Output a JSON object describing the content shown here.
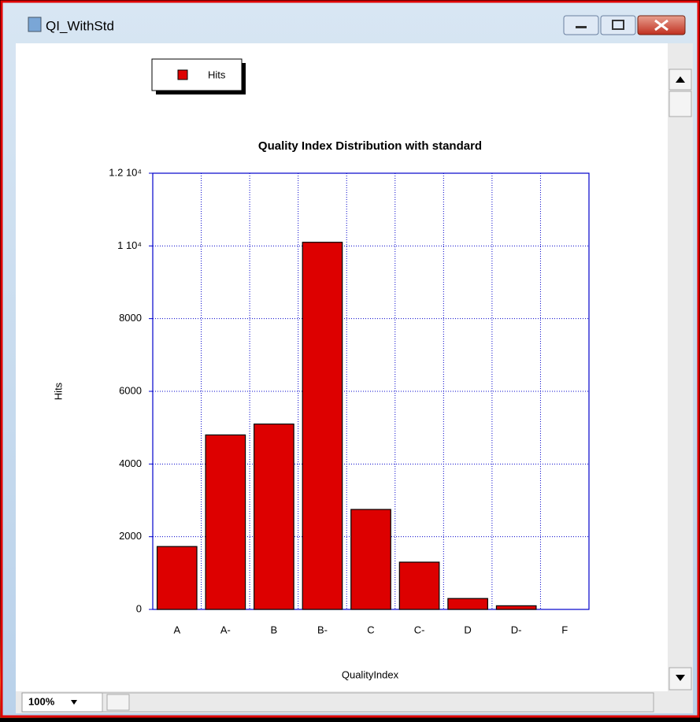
{
  "window": {
    "title": "QI_WithStd",
    "zoom": "100%"
  },
  "chart_data": {
    "type": "bar",
    "title": "Quality Index Distribution with standard",
    "x_label": "QualityIndex",
    "y_label": "Hits",
    "categories": [
      "A",
      "A-",
      "B",
      "B-",
      "C",
      "C-",
      "D",
      "D-",
      "F"
    ],
    "series": [
      {
        "name": "Hits",
        "color": "#dd0000",
        "values": [
          1730,
          4800,
          5100,
          10100,
          2750,
          1300,
          300,
          100,
          0
        ]
      }
    ],
    "ylim": [
      0,
      12000
    ],
    "yticks": [
      0,
      2000,
      4000,
      6000,
      8000,
      {
        "value": 10000,
        "label": "1 10⁴"
      },
      {
        "value": 12000,
        "label": "1.2 10⁴"
      }
    ],
    "grid": true,
    "legend": "top-left"
  }
}
